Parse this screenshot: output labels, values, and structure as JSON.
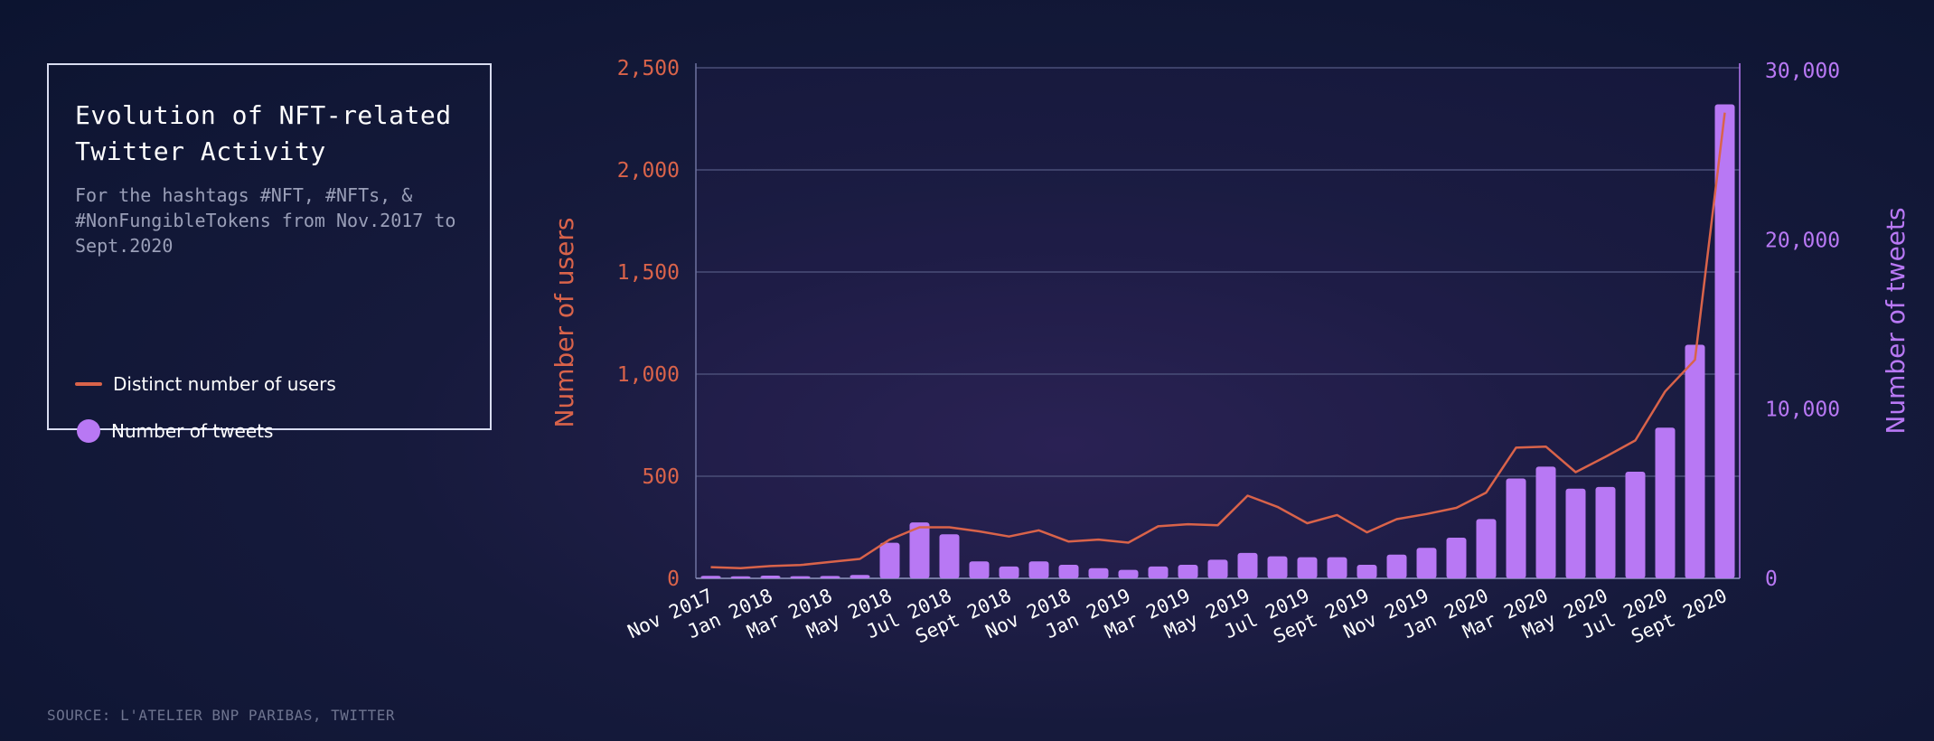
{
  "colors": {
    "users": "#d9634a",
    "tweets": "#b878f4",
    "grid": "#4a4f78",
    "frame": "#6e73a0",
    "tick_x": "#ffffff"
  },
  "legend": {
    "title": "Evolution of NFT-related Twitter Activity",
    "subtitle": "For the hashtags #NFT, #NFTs, & #NonFungibleTokens from Nov.2017 to Sept.2020",
    "items": [
      {
        "label": "Distinct number of users",
        "marker": "line"
      },
      {
        "label": "Number of tweets",
        "marker": "circle"
      }
    ]
  },
  "source": "SOURCE: L'ATELIER BNP PARIBAS, TWITTER",
  "chart_data": {
    "type": "bar+line",
    "title": "Evolution of NFT-related Twitter Activity",
    "categories": [
      "Nov 2017",
      "Dec 2017",
      "Jan 2018",
      "Feb 2018",
      "Mar 2018",
      "Apr 2018",
      "May 2018",
      "Jun 2018",
      "Jul 2018",
      "Aug 2018",
      "Sept 2018",
      "Oct 2018",
      "Nov 2018",
      "Dec 2018",
      "Jan 2019",
      "Feb 2019",
      "Mar 2019",
      "Apr 2019",
      "May 2019",
      "Jun 2019",
      "Jul 2019",
      "Aug 2019",
      "Sept 2019",
      "Oct 2019",
      "Nov 2019",
      "Dec 2019",
      "Jan 2020",
      "Feb 2020",
      "Mar 2020",
      "Apr 2020",
      "May 2020",
      "Jun 2020",
      "Jul 2020",
      "Aug 2020",
      "Sept 2020"
    ],
    "x_tick_labels": [
      "Nov 2017",
      "Jan 2018",
      "Mar 2018",
      "May 2018",
      "Jul 2018",
      "Sept 2018",
      "Nov 2018",
      "Jan 2019",
      "Mar 2019",
      "May 2019",
      "Jul 2019",
      "Sept 2019",
      "Nov 2019",
      "Jan 2020",
      "Mar 2020",
      "May 2020",
      "Jul 2020",
      "Sept 2020"
    ],
    "series": [
      {
        "name": "Distinct number of users",
        "type": "line",
        "axis": "left",
        "values": [
          55,
          50,
          60,
          65,
          80,
          95,
          190,
          250,
          250,
          230,
          205,
          235,
          180,
          190,
          175,
          255,
          265,
          260,
          405,
          350,
          270,
          310,
          225,
          290,
          315,
          345,
          420,
          640,
          645,
          520,
          595,
          675,
          915,
          1070,
          2280
        ]
      },
      {
        "name": "Number of tweets",
        "type": "bar",
        "axis": "right",
        "values": [
          150,
          120,
          160,
          130,
          140,
          200,
          2100,
          3300,
          2600,
          1000,
          700,
          1000,
          800,
          600,
          500,
          700,
          800,
          1100,
          1500,
          1300,
          1250,
          1250,
          800,
          1400,
          1800,
          2400,
          3500,
          5900,
          6600,
          5300,
          5400,
          6300,
          8900,
          13800,
          28000
        ]
      }
    ],
    "y_left": {
      "label": "Number of users",
      "range": [
        0,
        2500
      ],
      "ticks": [
        "0",
        "500",
        "1,000",
        "1,500",
        "2,000",
        "2,500"
      ],
      "tick_values": [
        0,
        500,
        1000,
        1500,
        2000,
        2500
      ]
    },
    "y_right": {
      "label": "Number of tweets",
      "range": [
        0,
        30000
      ],
      "ticks": [
        "0",
        "10,000",
        "20,000",
        "30,000"
      ],
      "tick_values": [
        0,
        10000,
        20000,
        30000
      ]
    },
    "grid": true
  }
}
